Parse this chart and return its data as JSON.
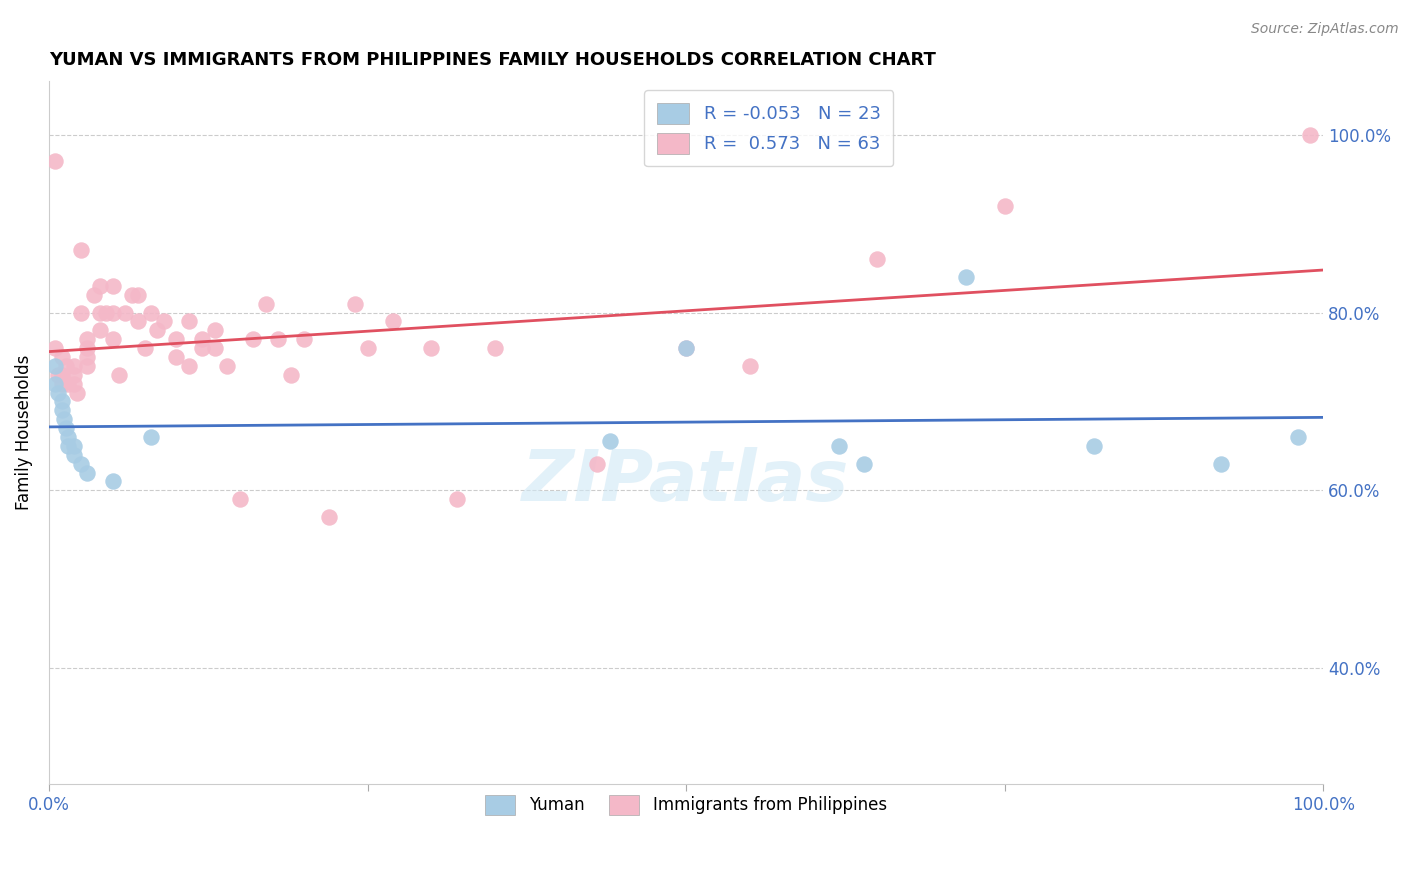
{
  "title": "YUMAN VS IMMIGRANTS FROM PHILIPPINES FAMILY HOUSEHOLDS CORRELATION CHART",
  "source": "Source: ZipAtlas.com",
  "ylabel": "Family Households",
  "legend_blue_label": "Yuman",
  "legend_pink_label": "Immigrants from Philippines",
  "R_blue": -0.053,
  "N_blue": 23,
  "R_pink": 0.573,
  "N_pink": 63,
  "blue_color": "#a8cce4",
  "pink_color": "#f4b8c8",
  "blue_line_color": "#4472c4",
  "pink_line_color": "#e05060",
  "background_color": "#ffffff",
  "watermark": "ZIPatlas",
  "xlim": [
    0.0,
    1.0
  ],
  "ylim": [
    0.27,
    1.06
  ],
  "yticks": [
    0.4,
    0.6,
    0.8,
    1.0
  ],
  "ytick_labels": [
    "40.0%",
    "60.0%",
    "80.0%",
    "100.0%"
  ],
  "blue_x": [
    0.005,
    0.005,
    0.007,
    0.01,
    0.01,
    0.012,
    0.013,
    0.015,
    0.015,
    0.02,
    0.02,
    0.025,
    0.03,
    0.05,
    0.08,
    0.44,
    0.5,
    0.62,
    0.64,
    0.72,
    0.82,
    0.92,
    0.98
  ],
  "blue_y": [
    0.74,
    0.72,
    0.71,
    0.7,
    0.69,
    0.68,
    0.67,
    0.66,
    0.65,
    0.65,
    0.64,
    0.63,
    0.62,
    0.61,
    0.66,
    0.655,
    0.76,
    0.65,
    0.63,
    0.84,
    0.65,
    0.63,
    0.66
  ],
  "pink_x": [
    0.005,
    0.005,
    0.007,
    0.01,
    0.01,
    0.01,
    0.013,
    0.015,
    0.02,
    0.02,
    0.02,
    0.022,
    0.025,
    0.025,
    0.03,
    0.03,
    0.03,
    0.03,
    0.035,
    0.04,
    0.04,
    0.04,
    0.045,
    0.05,
    0.05,
    0.05,
    0.055,
    0.06,
    0.065,
    0.07,
    0.07,
    0.075,
    0.08,
    0.085,
    0.09,
    0.1,
    0.1,
    0.11,
    0.11,
    0.12,
    0.12,
    0.13,
    0.13,
    0.14,
    0.15,
    0.16,
    0.17,
    0.18,
    0.19,
    0.2,
    0.22,
    0.24,
    0.25,
    0.27,
    0.3,
    0.32,
    0.35,
    0.43,
    0.5,
    0.55,
    0.65,
    0.75,
    0.99
  ],
  "pink_y": [
    0.97,
    0.76,
    0.73,
    0.75,
    0.73,
    0.72,
    0.74,
    0.72,
    0.74,
    0.73,
    0.72,
    0.71,
    0.87,
    0.8,
    0.77,
    0.76,
    0.75,
    0.74,
    0.82,
    0.83,
    0.8,
    0.78,
    0.8,
    0.83,
    0.8,
    0.77,
    0.73,
    0.8,
    0.82,
    0.82,
    0.79,
    0.76,
    0.8,
    0.78,
    0.79,
    0.77,
    0.75,
    0.79,
    0.74,
    0.77,
    0.76,
    0.78,
    0.76,
    0.74,
    0.59,
    0.77,
    0.81,
    0.77,
    0.73,
    0.77,
    0.57,
    0.81,
    0.76,
    0.79,
    0.76,
    0.59,
    0.76,
    0.63,
    0.76,
    0.74,
    0.86,
    0.92,
    1.0
  ]
}
